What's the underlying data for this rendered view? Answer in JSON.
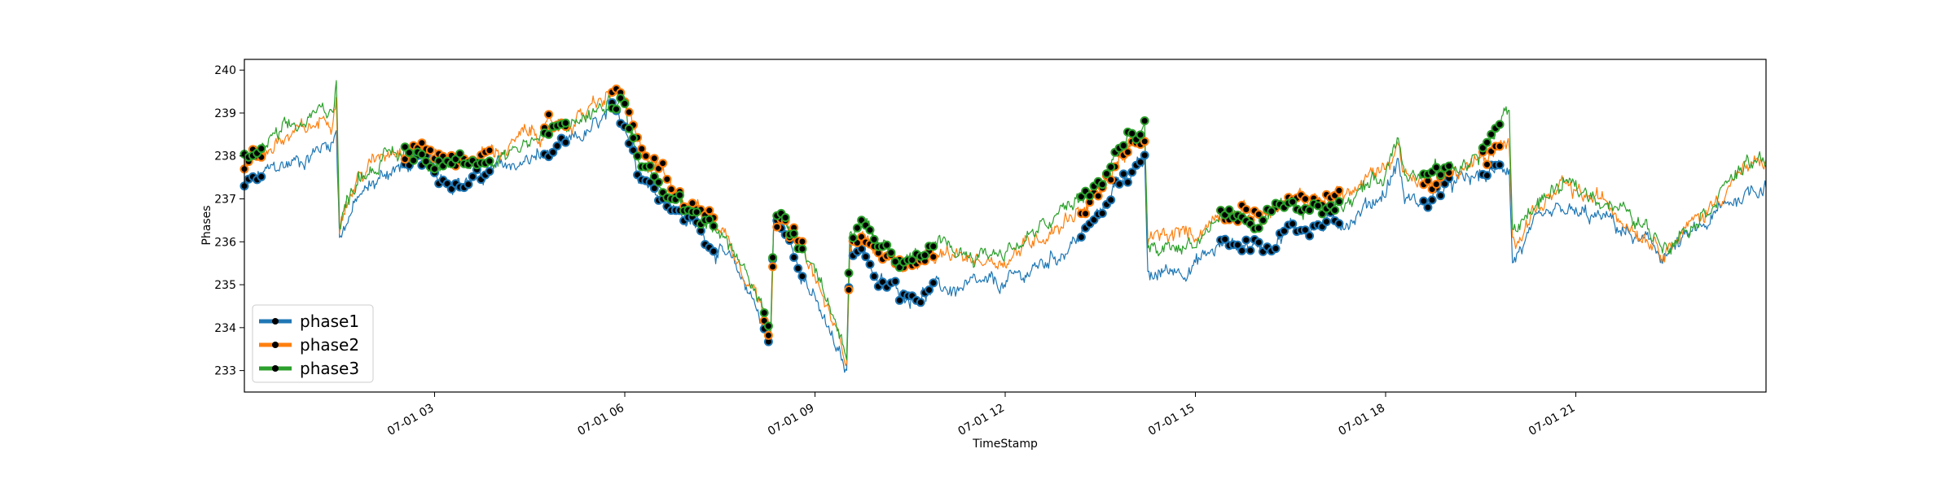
{
  "chart_data": {
    "type": "line",
    "xlabel": "TimeStamp",
    "ylabel": "Phases",
    "x_range_hours": [
      0,
      24
    ],
    "ylim": [
      232.5,
      240.25
    ],
    "y_ticks": [
      233,
      234,
      235,
      236,
      237,
      238,
      239,
      240
    ],
    "x_ticks": [
      {
        "hour": 3,
        "label": "07-01 03"
      },
      {
        "hour": 6,
        "label": "07-01 06"
      },
      {
        "hour": 9,
        "label": "07-01 09"
      },
      {
        "hour": 12,
        "label": "07-01 12"
      },
      {
        "hour": 15,
        "label": "07-01 15"
      },
      {
        "hour": 18,
        "label": "07-01 18"
      },
      {
        "hour": 21,
        "label": "07-01 21"
      }
    ],
    "grid": false,
    "legend_position": "lower-left",
    "series": [
      {
        "name": "phase1",
        "color": "#1f77b4",
        "points": [
          [
            0,
            237.3
          ],
          [
            0.5,
            237.7
          ],
          [
            1,
            238.0
          ],
          [
            1.4,
            238.4
          ],
          [
            1.45,
            238.6
          ],
          [
            1.5,
            236.2
          ],
          [
            1.8,
            237.0
          ],
          [
            2.3,
            237.7
          ],
          [
            2.8,
            237.8
          ],
          [
            3,
            237.6
          ],
          [
            3.5,
            237.4
          ],
          [
            4,
            237.7
          ],
          [
            4.5,
            237.9
          ],
          [
            5,
            238.1
          ],
          [
            5.5,
            238.6
          ],
          [
            5.9,
            239.0
          ],
          [
            6,
            238.8
          ],
          [
            6.2,
            237.8
          ],
          [
            6.5,
            237.2
          ],
          [
            7,
            236.5
          ],
          [
            7.5,
            235.8
          ],
          [
            8,
            234.8
          ],
          [
            8.3,
            233.6
          ],
          [
            8.35,
            236.5
          ],
          [
            8.5,
            236.2
          ],
          [
            8.8,
            235.4
          ],
          [
            9,
            234.6
          ],
          [
            9.5,
            232.9
          ],
          [
            9.55,
            235.9
          ],
          [
            9.8,
            235.8
          ],
          [
            10,
            235.0
          ],
          [
            10.5,
            234.8
          ],
          [
            11,
            234.9
          ],
          [
            11.5,
            234.9
          ],
          [
            12,
            235.0
          ],
          [
            12.5,
            235.4
          ],
          [
            13,
            235.9
          ],
          [
            13.5,
            236.6
          ],
          [
            13.8,
            237.5
          ],
          [
            14.2,
            237.8
          ],
          [
            14.25,
            235.1
          ],
          [
            14.5,
            235.3
          ],
          [
            15,
            235.5
          ],
          [
            15.5,
            236.0
          ],
          [
            16,
            235.9
          ],
          [
            16.5,
            236.3
          ],
          [
            17,
            236.4
          ],
          [
            17.5,
            236.6
          ],
          [
            18,
            237.2
          ],
          [
            18.2,
            237.9
          ],
          [
            18.3,
            237.0
          ],
          [
            18.6,
            236.9
          ],
          [
            19,
            237.3
          ],
          [
            19.5,
            237.5
          ],
          [
            19.95,
            237.8
          ],
          [
            20,
            235.6
          ],
          [
            20.3,
            236.2
          ],
          [
            20.8,
            236.7
          ],
          [
            21,
            236.6
          ],
          [
            21.5,
            236.5
          ],
          [
            22,
            236.0
          ],
          [
            22.4,
            235.7
          ],
          [
            23,
            236.3
          ],
          [
            23.5,
            237.0
          ],
          [
            24,
            237.4
          ]
        ]
      },
      {
        "name": "phase2",
        "color": "#ff7f0e",
        "points": [
          [
            0,
            237.8
          ],
          [
            0.5,
            238.3
          ],
          [
            1,
            238.6
          ],
          [
            1.4,
            239.0
          ],
          [
            1.45,
            239.6
          ],
          [
            1.5,
            236.6
          ],
          [
            1.8,
            237.5
          ],
          [
            2.3,
            238.2
          ],
          [
            2.8,
            238.3
          ],
          [
            3,
            238.0
          ],
          [
            3.5,
            237.9
          ],
          [
            4,
            238.1
          ],
          [
            4.5,
            238.5
          ],
          [
            5,
            238.7
          ],
          [
            5.5,
            239.1
          ],
          [
            5.9,
            239.5
          ],
          [
            6,
            239.2
          ],
          [
            6.2,
            238.2
          ],
          [
            6.5,
            237.8
          ],
          [
            7,
            237.0
          ],
          [
            7.5,
            236.4
          ],
          [
            8,
            235.1
          ],
          [
            8.3,
            233.9
          ],
          [
            8.35,
            236.7
          ],
          [
            8.5,
            236.4
          ],
          [
            8.8,
            235.8
          ],
          [
            9,
            235.1
          ],
          [
            9.5,
            233.3
          ],
          [
            9.55,
            236.1
          ],
          [
            9.8,
            236.1
          ],
          [
            10,
            235.7
          ],
          [
            10.5,
            235.5
          ],
          [
            11,
            235.6
          ],
          [
            11.5,
            235.6
          ],
          [
            12,
            235.6
          ],
          [
            12.5,
            236.1
          ],
          [
            13,
            236.6
          ],
          [
            13.5,
            237.1
          ],
          [
            13.8,
            238.0
          ],
          [
            14.2,
            238.3
          ],
          [
            14.25,
            236.0
          ],
          [
            14.5,
            236.1
          ],
          [
            15,
            236.2
          ],
          [
            15.5,
            236.8
          ],
          [
            16,
            236.6
          ],
          [
            16.5,
            236.9
          ],
          [
            17,
            237.0
          ],
          [
            17.5,
            237.2
          ],
          [
            18,
            237.8
          ],
          [
            18.2,
            238.3
          ],
          [
            18.3,
            237.6
          ],
          [
            18.6,
            237.4
          ],
          [
            19,
            237.6
          ],
          [
            19.5,
            237.9
          ],
          [
            19.95,
            238.2
          ],
          [
            20,
            236.0
          ],
          [
            20.3,
            236.7
          ],
          [
            20.8,
            237.2
          ],
          [
            21,
            237.1
          ],
          [
            21.5,
            236.9
          ],
          [
            22,
            236.3
          ],
          [
            22.4,
            235.9
          ],
          [
            23,
            236.6
          ],
          [
            23.5,
            237.5
          ],
          [
            24,
            237.9
          ]
        ]
      },
      {
        "name": "phase3",
        "color": "#2ca02c",
        "points": [
          [
            0,
            237.9
          ],
          [
            0.5,
            238.4
          ],
          [
            1,
            238.8
          ],
          [
            1.4,
            239.2
          ],
          [
            1.45,
            239.9
          ],
          [
            1.5,
            236.4
          ],
          [
            1.8,
            237.6
          ],
          [
            2.3,
            238.0
          ],
          [
            2.8,
            238.1
          ],
          [
            3,
            237.9
          ],
          [
            3.5,
            237.7
          ],
          [
            4,
            238.0
          ],
          [
            4.5,
            238.4
          ],
          [
            5,
            238.6
          ],
          [
            5.5,
            239.0
          ],
          [
            5.9,
            239.3
          ],
          [
            6,
            239.1
          ],
          [
            6.2,
            238.0
          ],
          [
            6.5,
            237.6
          ],
          [
            7,
            236.9
          ],
          [
            7.5,
            236.2
          ],
          [
            8,
            235.0
          ],
          [
            8.3,
            234.1
          ],
          [
            8.35,
            236.8
          ],
          [
            8.5,
            236.5
          ],
          [
            8.8,
            236.0
          ],
          [
            9,
            235.4
          ],
          [
            9.5,
            233.5
          ],
          [
            9.55,
            236.3
          ],
          [
            9.8,
            236.2
          ],
          [
            10,
            235.8
          ],
          [
            10.5,
            235.6
          ],
          [
            11,
            235.8
          ],
          [
            11.5,
            235.7
          ],
          [
            12,
            235.8
          ],
          [
            12.5,
            236.2
          ],
          [
            13,
            236.8
          ],
          [
            13.5,
            237.3
          ],
          [
            13.8,
            238.2
          ],
          [
            14.2,
            238.6
          ],
          [
            14.25,
            235.7
          ],
          [
            14.5,
            235.8
          ],
          [
            15,
            236.0
          ],
          [
            15.5,
            236.7
          ],
          [
            16,
            236.4
          ],
          [
            16.5,
            236.7
          ],
          [
            17,
            236.8
          ],
          [
            17.5,
            237.1
          ],
          [
            18,
            237.6
          ],
          [
            18.2,
            238.6
          ],
          [
            18.3,
            237.8
          ],
          [
            18.6,
            237.5
          ],
          [
            19,
            237.7
          ],
          [
            19.5,
            238.0
          ],
          [
            19.95,
            239.1
          ],
          [
            20,
            236.2
          ],
          [
            20.3,
            236.8
          ],
          [
            20.8,
            237.3
          ],
          [
            21,
            237.2
          ],
          [
            21.5,
            237.0
          ],
          [
            22,
            236.4
          ],
          [
            22.4,
            236.0
          ],
          [
            23,
            236.7
          ],
          [
            23.5,
            237.6
          ],
          [
            24,
            237.9
          ]
        ]
      }
    ],
    "highlight_marker_color": "#000000",
    "highlight_ranges_hours": [
      [
        0,
        0.3
      ],
      [
        2.5,
        3.9
      ],
      [
        4.7,
        5.1
      ],
      [
        5.8,
        7.4
      ],
      [
        8.2,
        8.8
      ],
      [
        9.5,
        10.9
      ],
      [
        13.2,
        14.2
      ],
      [
        15.4,
        17.3
      ],
      [
        18.6,
        19.0
      ],
      [
        19.5,
        19.8
      ]
    ]
  }
}
